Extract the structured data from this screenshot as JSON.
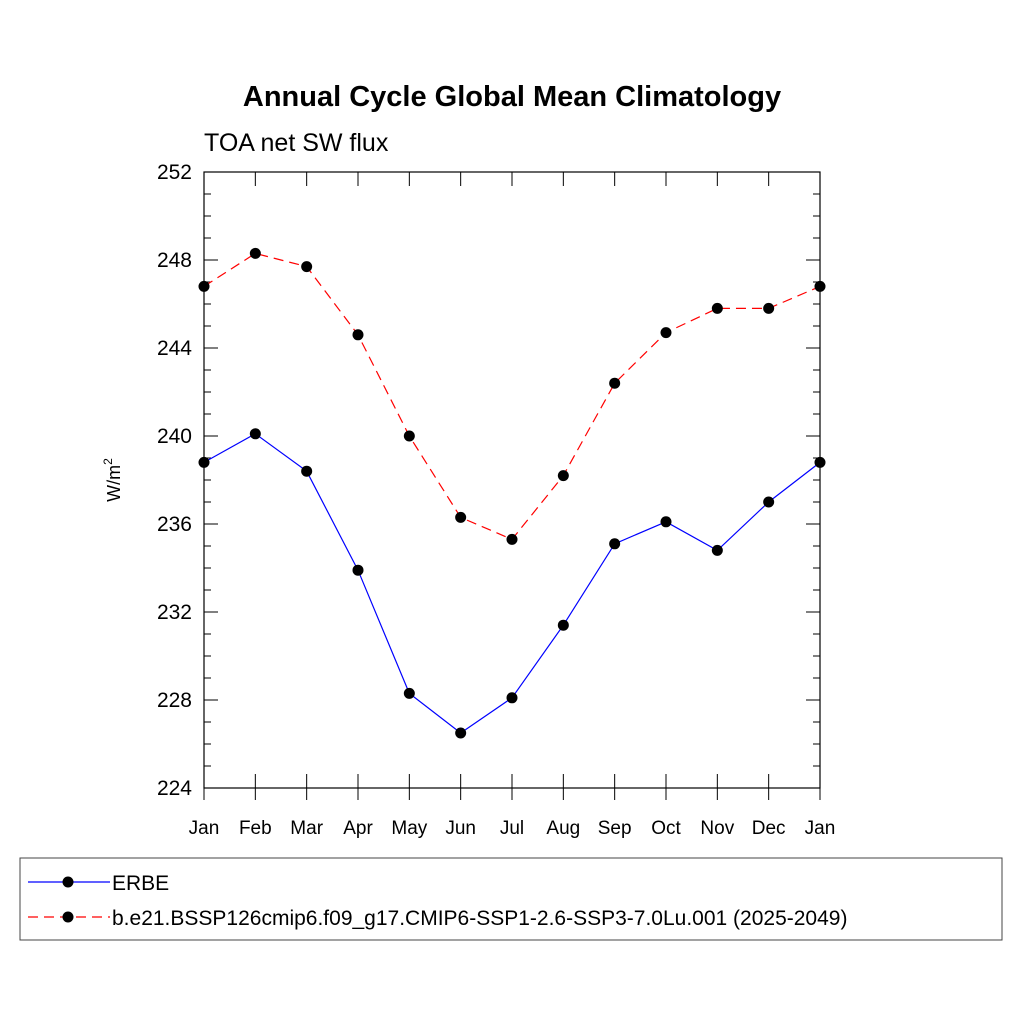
{
  "chart_data": {
    "type": "line",
    "title": "Annual Cycle Global Mean Climatology",
    "subtitle": "TOA net SW flux",
    "ylabel": "W/m",
    "ylabel_sup": "2",
    "xlabel": "",
    "categories": [
      "Jan",
      "Feb",
      "Mar",
      "Apr",
      "May",
      "Jun",
      "Jul",
      "Aug",
      "Sep",
      "Oct",
      "Nov",
      "Dec",
      "Jan"
    ],
    "ylim": [
      224,
      252
    ],
    "yticks": [
      "224",
      "228",
      "232",
      "236",
      "240",
      "244",
      "248",
      "252"
    ],
    "grid": false,
    "legend_position": "bottom",
    "series": [
      {
        "name": "ERBE",
        "color": "#0000ff",
        "dash": "solid",
        "marker": "filled-circle",
        "values": [
          238.8,
          240.1,
          238.4,
          233.9,
          228.3,
          226.5,
          228.1,
          231.4,
          235.1,
          236.1,
          234.8,
          237.0,
          238.8
        ]
      },
      {
        "name": "b.e21.BSSP126cmip6.f09_g17.CMIP6-SSP1-2.6-SSP3-7.0Lu.001 (2025-2049)",
        "color": "#ff0000",
        "dash": "dashed",
        "marker": "filled-circle",
        "values": [
          246.8,
          248.3,
          247.7,
          244.6,
          240.0,
          236.3,
          235.3,
          238.2,
          242.4,
          244.7,
          245.8,
          245.8,
          246.8
        ]
      }
    ]
  }
}
